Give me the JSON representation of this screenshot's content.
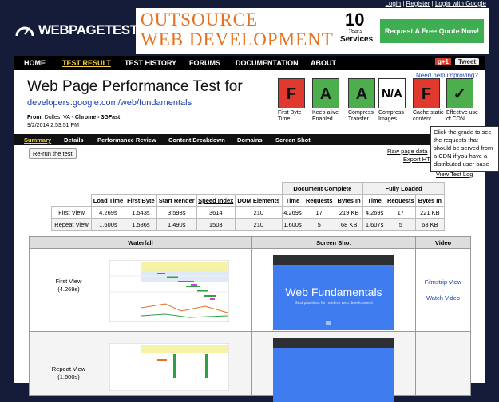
{
  "header": {
    "top_links": [
      "Login",
      "Register",
      "Login with Google"
    ],
    "logo": "WEBPAGETEST",
    "ad": {
      "headline_1": "OUTSOURCE",
      "headline_2": "WEB DEVELOPMENT",
      "badge_number": "10",
      "badge_line_1": "Years",
      "badge_line_2": "Services",
      "button": "Request A Free Quote Now!"
    }
  },
  "nav": {
    "items": [
      "HOME",
      "TEST RESULT",
      "TEST HISTORY",
      "FORUMS",
      "DOCUMENTATION",
      "ABOUT"
    ],
    "social": [
      "g+1",
      "Tweet"
    ]
  },
  "test": {
    "title": "Web Page Performance Test for",
    "url": "developers.google.com/web/fundamentals",
    "from_label": "From:",
    "location": "Dulles, VA -",
    "browser": "Chrome - 3GFast",
    "date": "9/2/2014 2:53:51 PM",
    "help": "Need help improving?"
  },
  "grades": [
    {
      "grade": "F",
      "label": "First Byte Time",
      "color": "#e03a2f"
    },
    {
      "grade": "A",
      "label": "Keep-alive Enabled",
      "color": "#4cae4c"
    },
    {
      "grade": "A",
      "label": "Compress Transfer",
      "color": "#4cae4c"
    },
    {
      "grade": "N/A",
      "label": "Compress Images",
      "color": "#ffffff"
    },
    {
      "grade": "F",
      "label": "Cache static content",
      "color": "#e03a2f"
    },
    {
      "grade": "✓",
      "label": "Effective use of CDN",
      "color": "#4cae4c"
    }
  ],
  "tabs": [
    "Summary",
    "Details",
    "Performance Review",
    "Content Breakdown",
    "Domains",
    "Screen Shot"
  ],
  "tooltip": "Click the grade to see the requests that should be served from a CDN if you have a distributed user base",
  "actions": {
    "rerun": "Re-run the test",
    "raw": "Raw page data",
    "separator": "-",
    "export": "Export HTTP Archive (.har)",
    "log": "View Test Log"
  },
  "results": {
    "groups": [
      "Document Complete",
      "Fully Loaded"
    ],
    "columns": [
      "Load Time",
      "First Byte",
      "Start Render",
      "Speed Index",
      "DOM Elements",
      "Time",
      "Requests",
      "Bytes In",
      "Time",
      "Requests",
      "Bytes In"
    ],
    "rows": [
      [
        "First View",
        "4.269s",
        "1.543s",
        "3.593s",
        3614,
        210,
        "4.269s",
        17,
        "219 KB",
        "4.269s",
        17,
        "221 KB"
      ],
      [
        "Repeat View",
        "1.600s",
        "1.586s",
        "1.490s",
        1503,
        210,
        "1.600s",
        5,
        "68 KB",
        "1.607s",
        5,
        "68 KB"
      ]
    ]
  },
  "views": {
    "columns": [
      "Waterfall",
      "Screen Shot",
      "Video"
    ],
    "rows": [
      {
        "label": "First View",
        "time": "(4.269s)",
        "filmstrip": "Filmstrip View",
        "separator": "-",
        "video": "Watch Video"
      },
      {
        "label": "Repeat View",
        "time": "(1.600s)"
      }
    ],
    "screenshot": {
      "title": "Web Fundamentals",
      "subtitle": "Best practices for modern web development"
    }
  }
}
